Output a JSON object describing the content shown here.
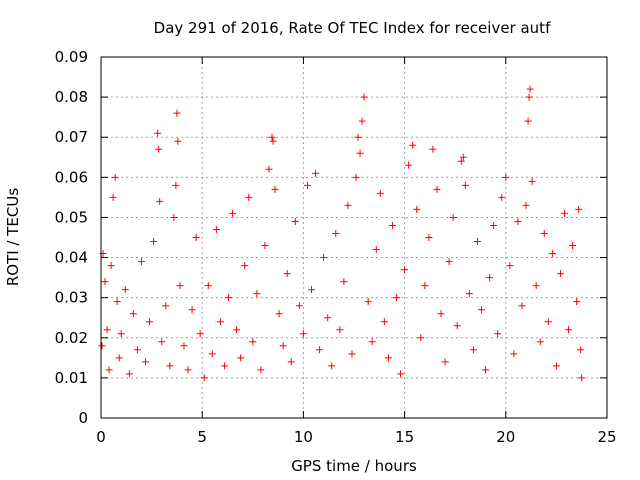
{
  "chart_data": {
    "type": "scatter",
    "title": "Day 291 of 2016, Rate Of TEC Index for receiver autf",
    "xlabel": "GPS time / hours",
    "ylabel": "ROTI / TECUs",
    "xlim": [
      0,
      25
    ],
    "ylim": [
      0,
      0.09
    ],
    "xticks": [
      0,
      5,
      10,
      15,
      20,
      25
    ],
    "xtick_labels": [
      "0",
      "5",
      "10",
      "15",
      "20",
      "25"
    ],
    "yticks": [
      0,
      0.01,
      0.02,
      0.03,
      0.04,
      0.05,
      0.06,
      0.07,
      0.08,
      0.09
    ],
    "ytick_labels": [
      "0",
      "0.01",
      "0.02",
      "0.03",
      "0.04",
      "0.05",
      "0.06",
      "0.07",
      "0.08",
      "0.09"
    ],
    "grid": true,
    "marker": "+",
    "color": "#ff0000",
    "series": [
      {
        "name": "ROTI",
        "points": [
          [
            0.05,
            0.018
          ],
          [
            0.1,
            0.041
          ],
          [
            0.2,
            0.034
          ],
          [
            0.3,
            0.022
          ],
          [
            0.4,
            0.012
          ],
          [
            0.5,
            0.038
          ],
          [
            0.6,
            0.055
          ],
          [
            0.7,
            0.06
          ],
          [
            0.8,
            0.029
          ],
          [
            0.9,
            0.015
          ],
          [
            1.0,
            0.021
          ],
          [
            1.2,
            0.032
          ],
          [
            1.4,
            0.011
          ],
          [
            1.6,
            0.026
          ],
          [
            1.8,
            0.017
          ],
          [
            2.0,
            0.039
          ],
          [
            2.2,
            0.014
          ],
          [
            2.4,
            0.024
          ],
          [
            2.6,
            0.044
          ],
          [
            2.8,
            0.071
          ],
          [
            2.85,
            0.067
          ],
          [
            2.9,
            0.054
          ],
          [
            3.0,
            0.019
          ],
          [
            3.2,
            0.028
          ],
          [
            3.4,
            0.013
          ],
          [
            3.6,
            0.05
          ],
          [
            3.7,
            0.058
          ],
          [
            3.75,
            0.076
          ],
          [
            3.8,
            0.069
          ],
          [
            3.9,
            0.033
          ],
          [
            4.1,
            0.018
          ],
          [
            4.3,
            0.012
          ],
          [
            4.5,
            0.027
          ],
          [
            4.7,
            0.045
          ],
          [
            4.9,
            0.021
          ],
          [
            5.1,
            0.01
          ],
          [
            5.3,
            0.033
          ],
          [
            5.5,
            0.016
          ],
          [
            5.7,
            0.047
          ],
          [
            5.9,
            0.024
          ],
          [
            6.1,
            0.013
          ],
          [
            6.3,
            0.03
          ],
          [
            6.5,
            0.051
          ],
          [
            6.7,
            0.022
          ],
          [
            6.9,
            0.015
          ],
          [
            7.1,
            0.038
          ],
          [
            7.3,
            0.055
          ],
          [
            7.5,
            0.019
          ],
          [
            7.7,
            0.031
          ],
          [
            7.9,
            0.012
          ],
          [
            8.1,
            0.043
          ],
          [
            8.3,
            0.062
          ],
          [
            8.45,
            0.07
          ],
          [
            8.5,
            0.069
          ],
          [
            8.6,
            0.057
          ],
          [
            8.8,
            0.026
          ],
          [
            9.0,
            0.018
          ],
          [
            9.2,
            0.036
          ],
          [
            9.4,
            0.014
          ],
          [
            9.6,
            0.049
          ],
          [
            9.8,
            0.028
          ],
          [
            10.0,
            0.021
          ],
          [
            10.2,
            0.058
          ],
          [
            10.4,
            0.032
          ],
          [
            10.6,
            0.061
          ],
          [
            10.8,
            0.017
          ],
          [
            11.0,
            0.04
          ],
          [
            11.2,
            0.025
          ],
          [
            11.4,
            0.013
          ],
          [
            11.6,
            0.046
          ],
          [
            11.8,
            0.022
          ],
          [
            12.0,
            0.034
          ],
          [
            12.2,
            0.053
          ],
          [
            12.4,
            0.016
          ],
          [
            12.6,
            0.06
          ],
          [
            12.7,
            0.07
          ],
          [
            12.8,
            0.066
          ],
          [
            12.9,
            0.074
          ],
          [
            13.0,
            0.08
          ],
          [
            13.2,
            0.029
          ],
          [
            13.4,
            0.019
          ],
          [
            13.6,
            0.042
          ],
          [
            13.8,
            0.056
          ],
          [
            14.0,
            0.024
          ],
          [
            14.2,
            0.015
          ],
          [
            14.4,
            0.048
          ],
          [
            14.6,
            0.03
          ],
          [
            14.8,
            0.011
          ],
          [
            15.0,
            0.037
          ],
          [
            15.2,
            0.063
          ],
          [
            15.4,
            0.068
          ],
          [
            15.6,
            0.052
          ],
          [
            15.8,
            0.02
          ],
          [
            16.0,
            0.033
          ],
          [
            16.2,
            0.045
          ],
          [
            16.4,
            0.067
          ],
          [
            16.6,
            0.057
          ],
          [
            16.8,
            0.026
          ],
          [
            17.0,
            0.014
          ],
          [
            17.2,
            0.039
          ],
          [
            17.4,
            0.05
          ],
          [
            17.6,
            0.023
          ],
          [
            17.8,
            0.064
          ],
          [
            17.9,
            0.065
          ],
          [
            18.0,
            0.058
          ],
          [
            18.2,
            0.031
          ],
          [
            18.4,
            0.017
          ],
          [
            18.6,
            0.044
          ],
          [
            18.8,
            0.027
          ],
          [
            19.0,
            0.012
          ],
          [
            19.2,
            0.035
          ],
          [
            19.4,
            0.048
          ],
          [
            19.6,
            0.021
          ],
          [
            19.8,
            0.055
          ],
          [
            20.0,
            0.06
          ],
          [
            20.2,
            0.038
          ],
          [
            20.4,
            0.016
          ],
          [
            20.6,
            0.049
          ],
          [
            20.8,
            0.028
          ],
          [
            21.0,
            0.053
          ],
          [
            21.1,
            0.074
          ],
          [
            21.15,
            0.08
          ],
          [
            21.2,
            0.082
          ],
          [
            21.3,
            0.059
          ],
          [
            21.5,
            0.033
          ],
          [
            21.7,
            0.019
          ],
          [
            21.9,
            0.046
          ],
          [
            22.1,
            0.024
          ],
          [
            22.3,
            0.041
          ],
          [
            22.5,
            0.013
          ],
          [
            22.7,
            0.036
          ],
          [
            22.9,
            0.051
          ],
          [
            23.1,
            0.022
          ],
          [
            23.3,
            0.043
          ],
          [
            23.5,
            0.029
          ],
          [
            23.6,
            0.052
          ],
          [
            23.7,
            0.017
          ],
          [
            23.75,
            0.01
          ]
        ]
      }
    ]
  }
}
